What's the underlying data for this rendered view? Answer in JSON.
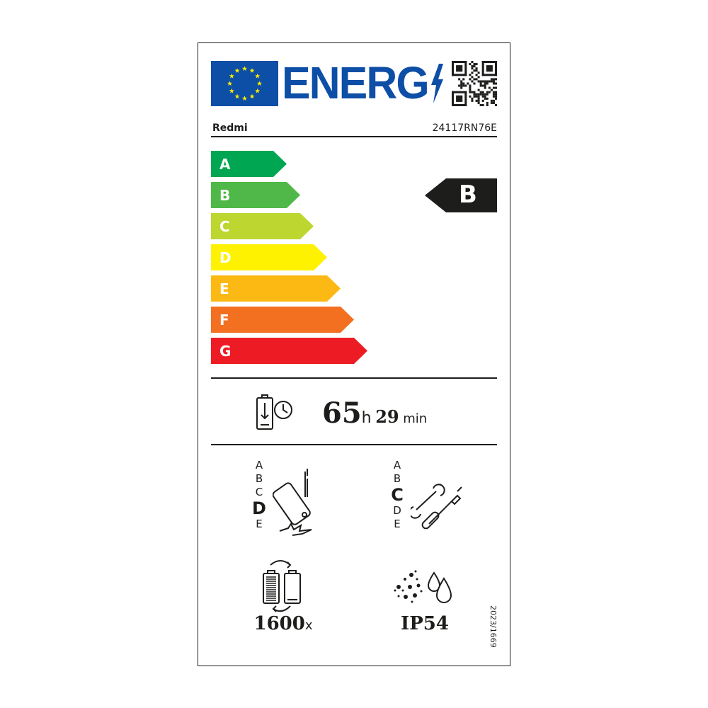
{
  "header": {
    "logo_text": "ENERG",
    "brand": "Redmi",
    "model": "24117RN76E",
    "flag_color": "#0d4ea6"
  },
  "scale": {
    "classes": [
      {
        "letter": "A",
        "color": "#00a651"
      },
      {
        "letter": "B",
        "color": "#50b848"
      },
      {
        "letter": "C",
        "color": "#bed630"
      },
      {
        "letter": "D",
        "color": "#fff200"
      },
      {
        "letter": "E",
        "color": "#fdb913"
      },
      {
        "letter": "F",
        "color": "#f37021"
      },
      {
        "letter": "G",
        "color": "#ed1c24"
      }
    ],
    "selected": "B"
  },
  "battery_endurance": {
    "hours": "65",
    "hours_unit": "h",
    "minutes": "29",
    "minutes_unit": "min",
    "icon": "battery-clock-icon"
  },
  "drop_resistance": {
    "classes": [
      "A",
      "B",
      "C",
      "D",
      "E"
    ],
    "selected": "D",
    "icon": "phone-drop-icon"
  },
  "repairability": {
    "classes": [
      "A",
      "B",
      "C",
      "D",
      "E"
    ],
    "selected": "C",
    "icon": "tools-icon"
  },
  "battery_cycles": {
    "value": "1600",
    "unit": "x",
    "icon": "battery-cycle-icon"
  },
  "ingress_protection": {
    "value": "IP54",
    "icon": "dust-water-icon"
  },
  "regulation": "2023/1669"
}
